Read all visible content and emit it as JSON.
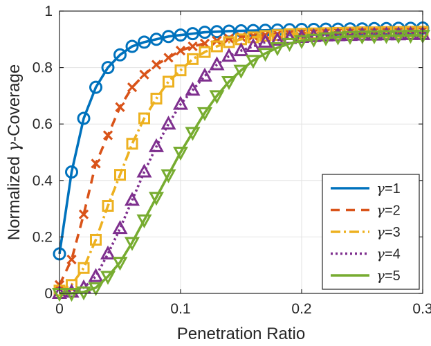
{
  "chart_data": {
    "type": "line",
    "title": "",
    "xlabel": "Penetration Ratio",
    "ylabel_symbol": "γ",
    "ylabel_prefix": "Normalized ",
    "ylabel_suffix": "-Coverage",
    "xlim": [
      0,
      0.3
    ],
    "ylim": [
      0,
      1
    ],
    "xticks": [
      0,
      0.1,
      0.2,
      0.3
    ],
    "xtick_labels": [
      "0",
      "0.1",
      "0.2",
      "0.3"
    ],
    "yticks": [
      0,
      0.2,
      0.4,
      0.6,
      0.8,
      1
    ],
    "ytick_labels": [
      "0",
      "0.2",
      "0.4",
      "0.6",
      "0.8",
      "1"
    ],
    "grid": true,
    "legend_position": "bottom-right",
    "x": [
      0,
      0.01,
      0.02,
      0.03,
      0.04,
      0.05,
      0.06,
      0.07,
      0.08,
      0.09,
      0.1,
      0.11,
      0.12,
      0.13,
      0.14,
      0.15,
      0.16,
      0.17,
      0.18,
      0.19,
      0.2,
      0.21,
      0.22,
      0.23,
      0.24,
      0.25,
      0.26,
      0.27,
      0.28,
      0.29,
      0.3
    ],
    "series": [
      {
        "name": "γ=1",
        "symbol": "γ",
        "label_suffix": "=1",
        "color": "#0072BD",
        "dash": "",
        "marker": "circle",
        "values": [
          0.14,
          0.43,
          0.62,
          0.73,
          0.8,
          0.845,
          0.875,
          0.89,
          0.9,
          0.91,
          0.915,
          0.92,
          0.925,
          0.927,
          0.929,
          0.93,
          0.931,
          0.932,
          0.933,
          0.934,
          0.935,
          0.935,
          0.936,
          0.936,
          0.937,
          0.937,
          0.938,
          0.938,
          0.939,
          0.939,
          0.94
        ]
      },
      {
        "name": "γ=2",
        "symbol": "γ",
        "label_suffix": "=2",
        "color": "#D95319",
        "dash": "13,9",
        "marker": "x",
        "values": [
          0.03,
          0.12,
          0.28,
          0.46,
          0.56,
          0.66,
          0.73,
          0.775,
          0.81,
          0.835,
          0.86,
          0.875,
          0.885,
          0.895,
          0.903,
          0.908,
          0.912,
          0.915,
          0.918,
          0.92,
          0.922,
          0.923,
          0.924,
          0.925,
          0.926,
          0.927,
          0.928,
          0.928,
          0.929,
          0.929,
          0.93
        ]
      },
      {
        "name": "γ=3",
        "symbol": "γ",
        "label_suffix": "=3",
        "color": "#EDB120",
        "dash": "14,5,3,5",
        "marker": "square",
        "values": [
          0.01,
          0.03,
          0.09,
          0.19,
          0.31,
          0.42,
          0.53,
          0.62,
          0.69,
          0.75,
          0.79,
          0.83,
          0.855,
          0.875,
          0.89,
          0.9,
          0.907,
          0.912,
          0.915,
          0.918,
          0.92,
          0.921,
          0.922,
          0.923,
          0.924,
          0.925,
          0.925,
          0.926,
          0.926,
          0.927,
          0.927
        ]
      },
      {
        "name": "γ=4",
        "symbol": "γ",
        "label_suffix": "=4",
        "color": "#7E2F8E",
        "dash": "3,4",
        "marker": "triangle-up",
        "values": [
          0.0,
          0.005,
          0.02,
          0.06,
          0.14,
          0.23,
          0.33,
          0.43,
          0.52,
          0.6,
          0.67,
          0.72,
          0.77,
          0.81,
          0.84,
          0.86,
          0.875,
          0.89,
          0.897,
          0.903,
          0.907,
          0.91,
          0.912,
          0.913,
          0.914,
          0.915,
          0.915,
          0.916,
          0.916,
          0.917,
          0.917
        ]
      },
      {
        "name": "γ=5",
        "symbol": "γ",
        "label_suffix": "=5",
        "color": "#77AC30",
        "dash": "",
        "marker": "triangle-down",
        "values": [
          0.0,
          0.0,
          0.005,
          0.02,
          0.06,
          0.11,
          0.18,
          0.26,
          0.34,
          0.42,
          0.5,
          0.57,
          0.64,
          0.7,
          0.75,
          0.79,
          0.825,
          0.85,
          0.87,
          0.885,
          0.895,
          0.9,
          0.905,
          0.908,
          0.91,
          0.911,
          0.912,
          0.913,
          0.913,
          0.914,
          0.914
        ]
      }
    ]
  }
}
